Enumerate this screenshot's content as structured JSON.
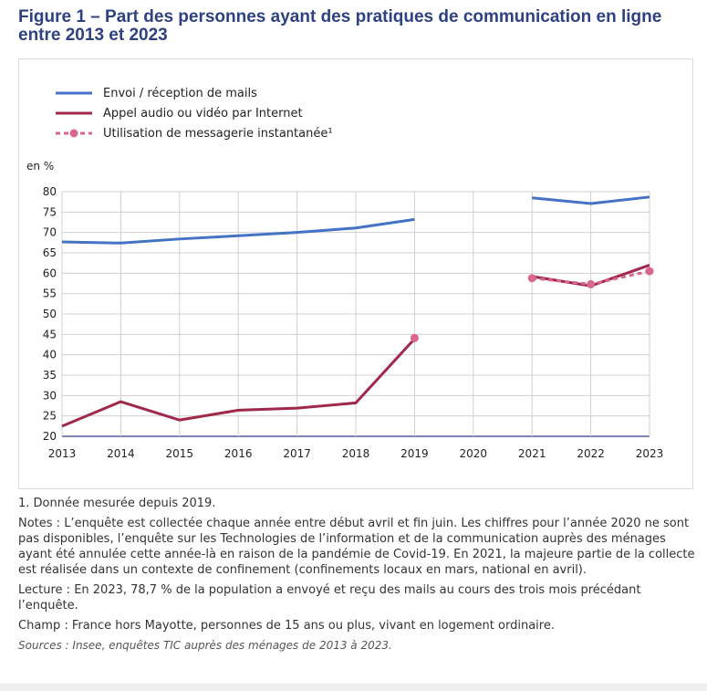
{
  "title": "Figure 1 – Part des personnes ayant des pratiques de communication en ligne entre 2013 et 2023",
  "chart_data": {
    "type": "line",
    "unit_label": "en %",
    "categories": [
      "2013",
      "2014",
      "2015",
      "2016",
      "2017",
      "2018",
      "2019",
      "2020",
      "2021",
      "2022",
      "2023"
    ],
    "ylim": [
      20,
      80
    ],
    "yticks": [
      20,
      25,
      30,
      35,
      40,
      45,
      50,
      55,
      60,
      65,
      70,
      75,
      80
    ],
    "grid": true,
    "legend_position": "top-left",
    "series": [
      {
        "name": "Envoi / réception de mails",
        "color": "#4472c4",
        "style": "solid",
        "values": [
          67.7,
          67.4,
          68.4,
          69.2,
          70.0,
          71.1,
          73.2,
          null,
          78.5,
          77.1,
          78.7
        ]
      },
      {
        "name": "Appel audio ou vidéo par Internet",
        "color": "#a0294b",
        "style": "solid",
        "values": [
          22.5,
          28.5,
          24.0,
          26.4,
          26.9,
          28.2,
          43.9,
          null,
          59.2,
          56.9,
          62.0
        ]
      },
      {
        "name": "Utilisation de messagerie instantanée¹",
        "color": "#d9668c",
        "style": "dashed-markers",
        "values": [
          null,
          null,
          null,
          null,
          null,
          null,
          44.1,
          null,
          58.8,
          57.3,
          60.5
        ]
      }
    ]
  },
  "notes": {
    "footnote": "1. Donnée mesurée depuis 2019.",
    "notes": "Notes : L’enquête est collectée chaque année entre début avril et fin juin. Les chiffres pour l’année 2020 ne sont pas disponibles, l’enquête sur les Technologies de l’information et de la communication auprès des ménages ayant été annulée cette année-là en raison de la pandémie de Covid-19. En 2021, la majeure partie de la collecte est réalisée dans un contexte de confinement (confinements locaux en mars, national en avril).",
    "lecture": "Lecture : En 2023, 78,7 % de la population a envoyé et reçu des mails au cours des trois mois précédant l’enquête.",
    "champ": "Champ : France hors Mayotte, personnes de 15 ans ou plus, vivant en logement ordinaire.",
    "sources": "Sources : Insee, enquêtes TIC auprès des ménages de 2013 à 2023."
  }
}
